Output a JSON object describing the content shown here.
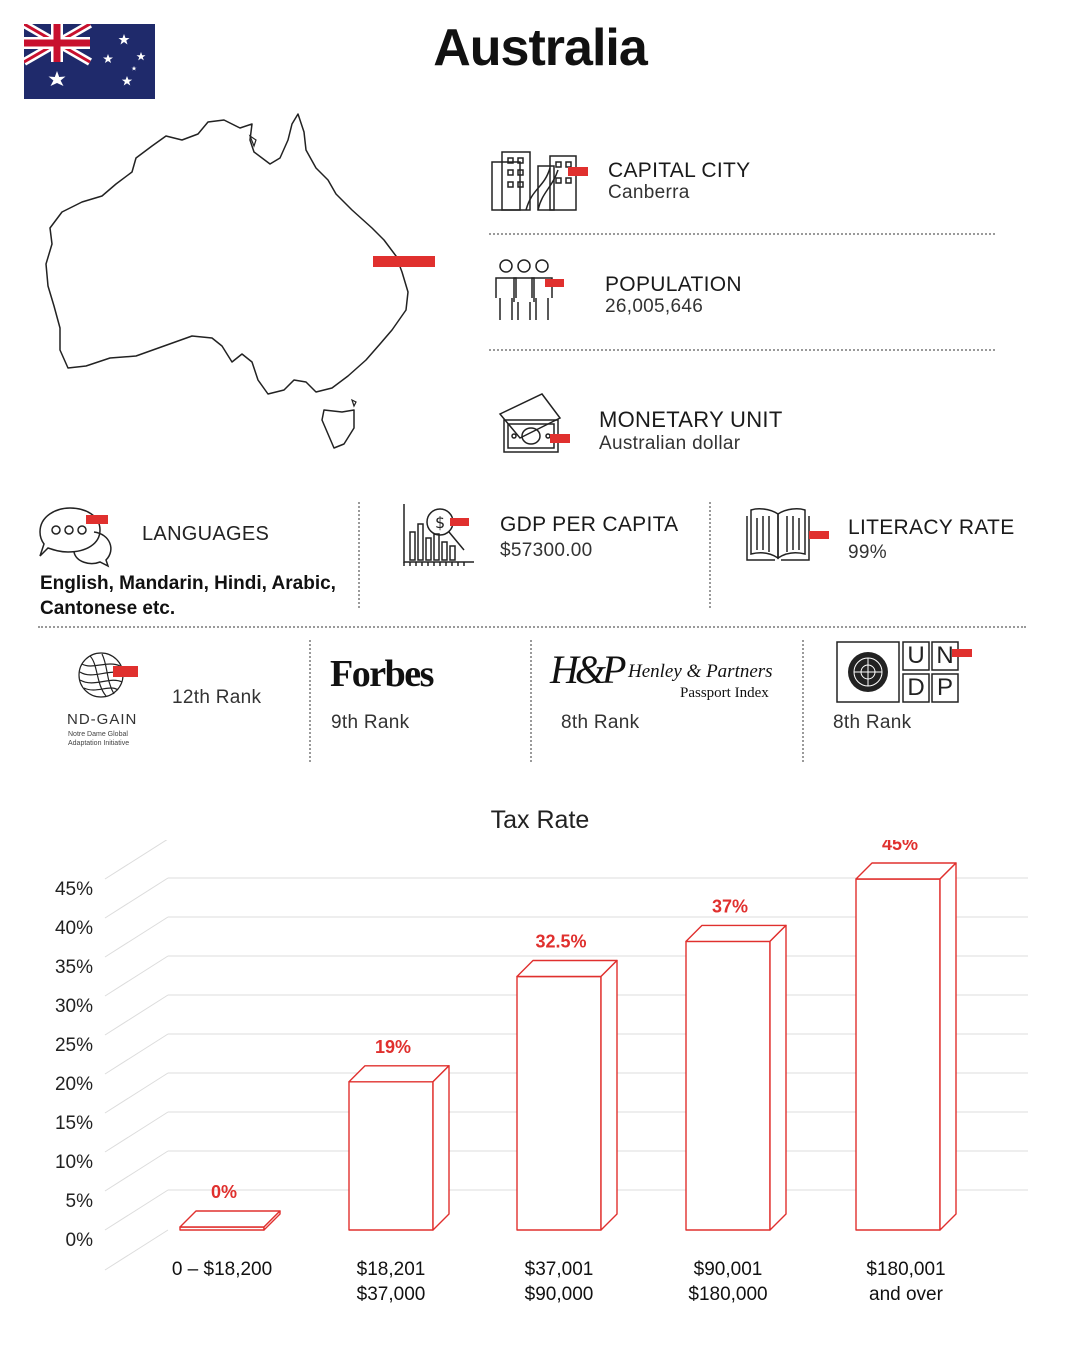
{
  "page": {
    "title": "Australia"
  },
  "stats": {
    "capital": {
      "label": "CAPITAL CITY",
      "value": "Canberra"
    },
    "population": {
      "label": "POPULATION",
      "value": "26,005,646"
    },
    "currency": {
      "label": "MONETARY UNIT",
      "value": "Australian dollar"
    },
    "languages": {
      "label": "LANGUAGES",
      "value_line1": "English, Mandarin, Hindi, Arabic,",
      "value_line2": "Cantonese etc."
    },
    "gdp": {
      "label": "GDP PER CAPITA",
      "value": "$57300.00"
    },
    "literacy": {
      "label": "LITERACY RATE",
      "value": "99%"
    }
  },
  "rankings": {
    "ndgain": {
      "logo_text": "ND-GAIN",
      "logo_sub1": "Notre Dame Global",
      "logo_sub2": "Adaptation Initiative",
      "rank": "12th Rank"
    },
    "forbes": {
      "logo_text": "Forbes",
      "rank": "9th Rank"
    },
    "henley": {
      "logo_mark": "H&P",
      "logo_name": "Henley & Partners",
      "logo_sub": "Passport Index",
      "rank": "8th Rank"
    },
    "undp": {
      "letters": [
        "U",
        "N",
        "D",
        "P"
      ],
      "rank": "8th Rank"
    }
  },
  "icons": {
    "capital": "city-buildings-icon",
    "population": "people-group-icon",
    "currency": "banknotes-icon",
    "languages": "speech-bubbles-icon",
    "gdp": "bar-chart-magnifier-icon",
    "literacy": "open-book-icon"
  },
  "colors": {
    "accent": "#e0302e",
    "flag_blue": "#1f2a6b",
    "bar_outline": "#e0302e",
    "text": "#1a1a1a"
  },
  "chart_data": {
    "type": "bar",
    "title": "Tax Rate",
    "categories": [
      [
        "0 – $18,200"
      ],
      [
        "$18,201",
        "$37,000"
      ],
      [
        "$37,001",
        "$90,000"
      ],
      [
        "$90,001",
        "$180,000"
      ],
      [
        "$180,001",
        "and over"
      ]
    ],
    "values": [
      0,
      19,
      32.5,
      37,
      45
    ],
    "value_labels": [
      "0%",
      "19%",
      "32.5%",
      "37%",
      "45%"
    ],
    "y_ticks": [
      "0%",
      "5%",
      "10%",
      "15%",
      "20%",
      "25%",
      "30%",
      "35%",
      "40%",
      "45%"
    ],
    "ylim": [
      0,
      45
    ],
    "grid": true,
    "legend": "none"
  }
}
